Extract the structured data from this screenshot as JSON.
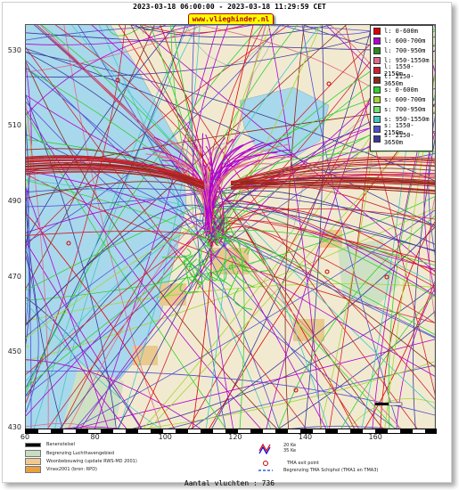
{
  "header": {
    "title": "2023-03-18 06:00:00 - 2023-03-18 11:29:59 CET",
    "site": "www.vlieghinder.nl"
  },
  "axes": {
    "y_ticks": [
      {
        "label": "530",
        "value": 530
      },
      {
        "label": "510",
        "value": 510
      },
      {
        "label": "490",
        "value": 490
      },
      {
        "label": "470",
        "value": 470
      },
      {
        "label": "450",
        "value": 450
      },
      {
        "label": "430",
        "value": 430
      }
    ],
    "x_ticks": [
      {
        "label": "60",
        "value": 60
      },
      {
        "label": "80",
        "value": 80
      },
      {
        "label": "100",
        "value": 100
      },
      {
        "label": "120",
        "value": 120
      },
      {
        "label": "140",
        "value": 140
      },
      {
        "label": "160",
        "value": 160
      }
    ],
    "x_range": [
      60,
      177
    ],
    "y_range": [
      430,
      537
    ]
  },
  "legend": [
    {
      "label": "l: 0-600m",
      "color": "#e00000"
    },
    {
      "label": "l: 600-700m",
      "color": "#b000d0"
    },
    {
      "label": "l: 700-950m",
      "color": "#2a8a1a"
    },
    {
      "label": "l: 950-1550m",
      "color": "#e06a8a"
    },
    {
      "label": "l: 1550-2150m",
      "color": "#d02030"
    },
    {
      "label": "l: 2150-3650m",
      "color": "#8a2a1a"
    },
    {
      "label": "s: 0-600m",
      "color": "#30d030"
    },
    {
      "label": "s: 600-700m",
      "color": "#a0d830"
    },
    {
      "label": "s: 700-950m",
      "color": "#70e070"
    },
    {
      "label": "s: 950-1550m",
      "color": "#40c8c0"
    },
    {
      "label": "s: 1550-2150m",
      "color": "#5050d0"
    },
    {
      "label": "s: 2150-3650m",
      "color": "#3a3a9a"
    }
  ],
  "bottom_legend": {
    "runway": "Banenstelsel",
    "airport_boundary": "Begrenzing Luchthavengebied",
    "housing": "Woonbebouwing (update RWS-MD 2001)",
    "vinex": "Vinex2001 (bron: RPD)",
    "contour_20": "20 Ke",
    "contour_35": "35 Ke",
    "tma_exit": "TMA exit point",
    "tma_boundary": "Begrenzing TMA Schiphol  (TMA1 en TMA3)"
  },
  "footer": {
    "count_text": "Aantal vluchten : 736"
  },
  "colors": {
    "water": "#a8d8ec",
    "land": "#f2ead0",
    "urban": "#e9c98e",
    "forest": "#cfe1c4"
  }
}
